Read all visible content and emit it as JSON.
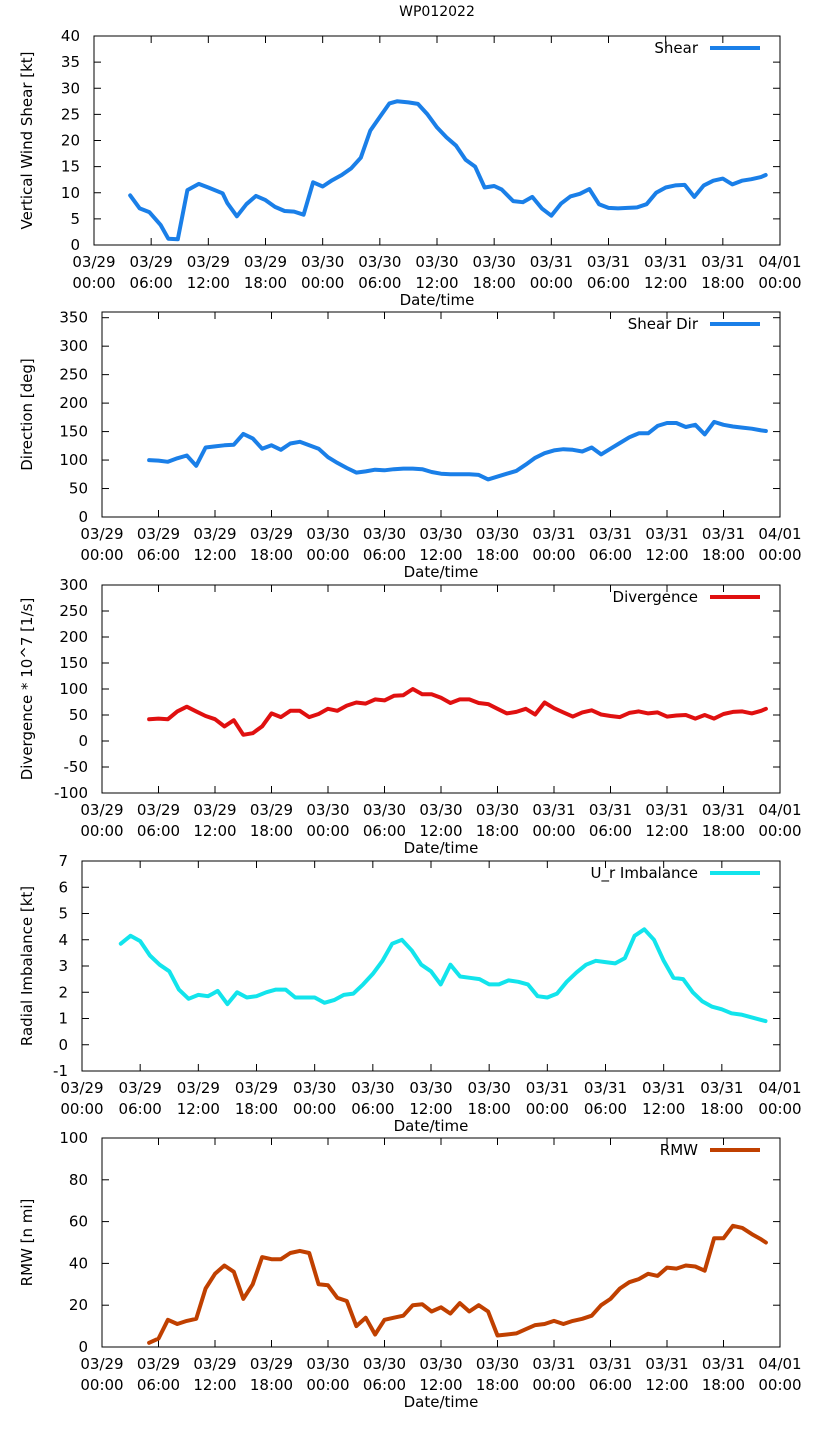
{
  "title": "WP012022",
  "x_ticks": [
    {
      "date": "03/29",
      "time": "00:00"
    },
    {
      "date": "03/29",
      "time": "06:00"
    },
    {
      "date": "03/29",
      "time": "12:00"
    },
    {
      "date": "03/29",
      "time": "18:00"
    },
    {
      "date": "03/30",
      "time": "00:00"
    },
    {
      "date": "03/30",
      "time": "06:00"
    },
    {
      "date": "03/30",
      "time": "12:00"
    },
    {
      "date": "03/30",
      "time": "18:00"
    },
    {
      "date": "03/31",
      "time": "00:00"
    },
    {
      "date": "03/31",
      "time": "06:00"
    },
    {
      "date": "03/31",
      "time": "12:00"
    },
    {
      "date": "03/31",
      "time": "18:00"
    },
    {
      "date": "04/01",
      "time": "00:00"
    }
  ],
  "chart_data": [
    {
      "type": "line",
      "title": "WP012022",
      "xlabel": "Date/time",
      "ylabel": "Vertical Wind Shear [kt]",
      "xlim": [
        0,
        72
      ],
      "ylim": [
        0,
        40
      ],
      "yticks": [
        0,
        5,
        10,
        15,
        20,
        25,
        30,
        35,
        40
      ],
      "series": [
        {
          "name": "Shear",
          "color": "#1a7fe8",
          "x": [
            3.8,
            4.8,
            5.8,
            7,
            7.8,
            8.8,
            9.8,
            11,
            12,
            13.5,
            14,
            15,
            16,
            17,
            18,
            19,
            20,
            21,
            22,
            23,
            24,
            25,
            26,
            27,
            28,
            29,
            30,
            31,
            31.8,
            33,
            34,
            35,
            36,
            37,
            38,
            39,
            40,
            41,
            42,
            42.8,
            44,
            45,
            46,
            47,
            48,
            49,
            50,
            51,
            52,
            53,
            54,
            55,
            56,
            57,
            58,
            59,
            60,
            61,
            62,
            63,
            64,
            65,
            66,
            67,
            68,
            69,
            70,
            70.5
          ],
          "y": [
            9.5,
            7,
            6.3,
            3.8,
            1.2,
            1.1,
            10.5,
            11.7,
            11,
            9.9,
            8,
            5.5,
            7.8,
            9.4,
            8.6,
            7.3,
            6.5,
            6.4,
            5.8,
            12,
            11.2,
            12.4,
            13.4,
            14.7,
            16.7,
            21.9,
            24.5,
            27.1,
            27.5,
            27.3,
            27,
            25,
            22.5,
            20.6,
            19,
            16.3,
            15,
            11,
            11.3,
            10.6,
            8.4,
            8.2,
            9.2,
            7,
            5.6,
            7.9,
            9.3,
            9.8,
            10.7,
            7.8,
            7.1,
            7,
            7.1,
            7.2,
            7.8,
            10,
            11,
            11.4,
            11.5,
            9.2,
            11.4,
            12.3,
            12.7,
            11.6,
            12.3,
            12.6,
            13,
            13.4
          ]
        }
      ]
    },
    {
      "type": "line",
      "xlabel": "Date/time",
      "ylabel": "Direction [deg]",
      "xlim": [
        0,
        72
      ],
      "ylim": [
        0,
        360
      ],
      "yticks": [
        0,
        50,
        100,
        150,
        200,
        250,
        300,
        350
      ],
      "series": [
        {
          "name": "Shear Dir",
          "color": "#1a7fe8",
          "x": [
            5,
            6,
            7,
            8,
            9,
            10,
            11,
            12,
            13,
            14,
            15,
            16,
            17,
            18,
            19,
            20,
            21,
            22,
            23,
            24,
            25,
            26,
            27,
            28,
            29,
            30,
            31,
            32,
            33,
            34,
            35,
            36,
            37,
            38,
            39,
            40,
            41,
            42,
            43,
            44,
            45,
            46,
            47,
            48,
            49,
            50,
            51,
            52,
            53,
            54,
            55,
            56,
            57,
            58,
            59,
            60,
            61,
            62,
            63,
            64,
            65,
            66,
            67,
            68,
            69,
            70,
            70.5
          ],
          "y": [
            100,
            99,
            97,
            103,
            108,
            90,
            122,
            124,
            126,
            127,
            146,
            138,
            120,
            126,
            118,
            129,
            132,
            126,
            120,
            105,
            95,
            86,
            78,
            80,
            83,
            82,
            84,
            85,
            85,
            84,
            79,
            76,
            75,
            75,
            75,
            74,
            66,
            71,
            76,
            81,
            92,
            104,
            112,
            117,
            119,
            118,
            115,
            122,
            110,
            120,
            130,
            140,
            147,
            147,
            160,
            165,
            165,
            158,
            162,
            145,
            167,
            162,
            159,
            157,
            155,
            152,
            151
          ]
        }
      ]
    },
    {
      "type": "line",
      "xlabel": "Date/time",
      "ylabel": "Divergence * 10^7 [1/s]",
      "xlim": [
        0,
        72
      ],
      "ylim": [
        -100,
        300
      ],
      "yticks": [
        -100,
        -50,
        0,
        50,
        100,
        150,
        200,
        250,
        300
      ],
      "series": [
        {
          "name": "Divergence",
          "color": "#e01010",
          "x": [
            5,
            6,
            7,
            8,
            9,
            10,
            11,
            12,
            13,
            14,
            15,
            16,
            17,
            18,
            19,
            20,
            21,
            22,
            23,
            24,
            25,
            26,
            27,
            28,
            29,
            30,
            31,
            32,
            33,
            34,
            35,
            36,
            37,
            38,
            39,
            40,
            41,
            42,
            43,
            44,
            45,
            46,
            47,
            48,
            49,
            50,
            51,
            52,
            53,
            54,
            55,
            56,
            57,
            58,
            59,
            60,
            61,
            62,
            63,
            64,
            65,
            66,
            67,
            68,
            69,
            70,
            70.5
          ],
          "y": [
            42,
            43,
            42,
            57,
            66,
            57,
            48,
            42,
            28,
            40,
            12,
            15,
            28,
            53,
            46,
            58,
            58,
            46,
            52,
            62,
            58,
            68,
            74,
            72,
            80,
            78,
            87,
            88,
            100,
            90,
            90,
            83,
            73,
            80,
            80,
            73,
            71,
            62,
            53,
            56,
            62,
            51,
            74,
            63,
            55,
            47,
            55,
            59,
            51,
            48,
            46,
            54,
            57,
            53,
            55,
            47,
            49,
            50,
            43,
            50,
            43,
            52,
            56,
            57,
            53,
            58,
            62
          ]
        }
      ]
    },
    {
      "type": "line",
      "xlabel": "Date/time",
      "ylabel": "Radial Imbalance [kt]",
      "xlim": [
        0,
        72
      ],
      "ylim": [
        -1,
        7
      ],
      "yticks": [
        -1,
        0,
        1,
        2,
        3,
        4,
        5,
        6,
        7
      ],
      "series": [
        {
          "name": "U_r Imbalance",
          "color": "#12e4ec",
          "x": [
            4,
            5,
            6,
            7,
            8,
            9,
            10,
            11,
            12,
            13,
            13.5,
            14,
            15,
            16,
            17,
            18,
            19,
            20,
            21,
            22,
            23,
            24,
            25,
            26,
            27,
            28,
            29,
            30,
            31,
            32,
            33,
            34,
            35,
            36,
            37,
            38,
            39,
            40,
            41,
            42,
            43,
            44,
            45,
            46,
            47,
            48,
            49,
            50,
            51,
            52,
            53,
            54,
            55,
            56,
            57,
            58,
            59,
            60,
            61,
            62,
            63,
            64,
            65,
            66,
            67,
            68,
            69,
            70,
            70.5
          ],
          "y": [
            3.85,
            4.15,
            3.95,
            3.4,
            3.05,
            2.8,
            2.1,
            1.75,
            1.9,
            1.85,
            1.95,
            2.05,
            1.55,
            2.0,
            1.8,
            1.85,
            2.0,
            2.1,
            2.1,
            1.8,
            1.8,
            1.8,
            1.6,
            1.7,
            1.9,
            1.95,
            2.3,
            2.7,
            3.2,
            3.85,
            4.0,
            3.6,
            3.05,
            2.8,
            2.3,
            3.05,
            2.6,
            2.55,
            2.5,
            2.3,
            2.3,
            2.45,
            2.4,
            2.3,
            1.85,
            1.8,
            1.95,
            2.4,
            2.75,
            3.05,
            3.2,
            3.15,
            3.1,
            3.3,
            4.15,
            4.4,
            4.0,
            3.2,
            2.55,
            2.5,
            2.0,
            1.65,
            1.45,
            1.35,
            1.2,
            1.15,
            1.05,
            0.95,
            0.9
          ]
        }
      ]
    },
    {
      "type": "line",
      "xlabel": "Date/time",
      "ylabel": "RMW [n mi]",
      "xlim": [
        0,
        72
      ],
      "ylim": [
        0,
        100
      ],
      "yticks": [
        0,
        20,
        40,
        60,
        80,
        100
      ],
      "series": [
        {
          "name": "RMW",
          "color": "#c04000",
          "x": [
            5,
            6,
            7,
            8,
            9,
            10,
            11,
            12,
            13,
            14,
            15,
            16,
            17,
            18,
            19,
            20,
            21,
            22,
            23,
            24,
            25,
            26,
            27,
            28,
            29,
            30,
            31,
            32,
            33,
            34,
            35,
            36,
            37,
            38,
            39,
            40,
            41,
            42,
            43,
            44,
            45,
            46,
            47,
            48,
            49,
            50,
            51,
            52,
            53,
            54,
            55,
            56,
            57,
            58,
            59,
            60,
            61,
            62,
            63,
            64,
            65,
            66,
            67,
            68,
            69,
            70,
            70.5
          ],
          "y": [
            2,
            4,
            13,
            11,
            12.5,
            13.5,
            28,
            35,
            39,
            36,
            23,
            30,
            43,
            42,
            42,
            45,
            46,
            45,
            30,
            29.5,
            23.5,
            22,
            10,
            14,
            6,
            13,
            14,
            15,
            20,
            20.5,
            17,
            19,
            16,
            21,
            17,
            20,
            17,
            5.5,
            6,
            6.5,
            8.5,
            10.5,
            11,
            12.5,
            11,
            12.5,
            13.5,
            15,
            20,
            23,
            28,
            31,
            32.5,
            35,
            34,
            38,
            37.5,
            39,
            38.5,
            36.5,
            52,
            52,
            58,
            57,
            54,
            51.5,
            50
          ]
        }
      ]
    }
  ]
}
